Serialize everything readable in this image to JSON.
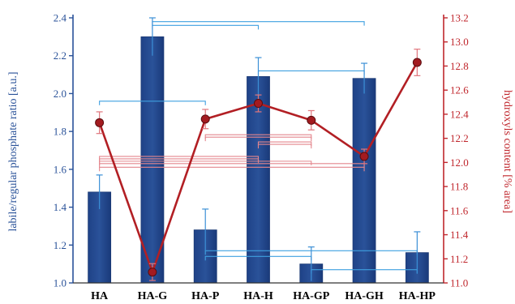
{
  "colors": {
    "bar": "#2a5299",
    "bar_edge": "#1c3a75",
    "left_axis": "#2a5299",
    "right_axis": "#c0272d",
    "line": "#b21f24",
    "marker": "#a31b20",
    "error_blue": "#3b8fd6",
    "error_red": "#e0757c",
    "sig_blue": "#3fa0e0",
    "sig_red": "#e4868d"
  },
  "chart_data": {
    "type": "bar+line",
    "categories": [
      "HA",
      "HA-G",
      "HA-P",
      "HA-H",
      "HA-GP",
      "HA-GH",
      "HA-HP"
    ],
    "series": [
      {
        "axis": "left",
        "type": "bar",
        "values": [
          1.48,
          2.3,
          1.28,
          2.09,
          1.1,
          2.08,
          1.16
        ],
        "errors": [
          0.09,
          0.1,
          0.11,
          0.1,
          0.09,
          0.08,
          0.11
        ]
      },
      {
        "axis": "right",
        "type": "line",
        "values": [
          12.33,
          11.09,
          12.36,
          12.49,
          12.35,
          12.05,
          12.83
        ],
        "errors": [
          0.09,
          0.07,
          0.08,
          0.07,
          0.08,
          0.06,
          0.11
        ]
      }
    ],
    "ylabel_left": "labile/regular phosphate ratio [a.u.]",
    "ylabel_right": "hydroxyls content [% area]",
    "ylim_left": [
      1.0,
      2.4
    ],
    "ylim_right": [
      11.0,
      13.2
    ],
    "yticks_left": [
      "1.0",
      "1.2",
      "1.4",
      "1.6",
      "1.8",
      "2.0",
      "2.2",
      "2.4"
    ],
    "yticks_right": [
      "11.0",
      "11.2",
      "11.4",
      "11.6",
      "11.8",
      "12.0",
      "12.2",
      "12.4",
      "12.6",
      "12.8",
      "13.0",
      "13.2"
    ],
    "grid": false,
    "significance_brackets": {
      "bars": [
        {
          "from": "HA-G",
          "to": "HA-H",
          "level": 2.36
        },
        {
          "from": "HA-G",
          "to": "HA-GH",
          "level": 2.38
        },
        {
          "from": "HA",
          "to": "HA-P",
          "level": 1.96
        },
        {
          "from": "HA-H",
          "to": "HA-GH",
          "level": 2.12
        },
        {
          "from": "HA-P",
          "to": "HA-GP",
          "level": 1.14
        },
        {
          "from": "HA-P",
          "to": "HA-HP",
          "level": 1.17
        },
        {
          "from": "HA-GP",
          "to": "HA-HP",
          "level": 1.07
        }
      ],
      "line": [
        {
          "from": "HA-P",
          "to": "HA-GP",
          "level": 12.23
        },
        {
          "from": "HA-P",
          "to": "HA-GP",
          "level": 12.21
        },
        {
          "from": "HA-H",
          "to": "HA-GP",
          "level": 12.17
        },
        {
          "from": "HA-H",
          "to": "HA-GP",
          "level": 12.15
        },
        {
          "from": "HA",
          "to": "HA-H",
          "level": 12.05
        },
        {
          "from": "HA",
          "to": "HA-H",
          "level": 12.03
        },
        {
          "from": "HA",
          "to": "HA-GP",
          "level": 12.01
        },
        {
          "from": "HA",
          "to": "HA-GH",
          "level": 11.99
        },
        {
          "from": "HA",
          "to": "HA-GH",
          "level": 11.96
        }
      ]
    }
  }
}
